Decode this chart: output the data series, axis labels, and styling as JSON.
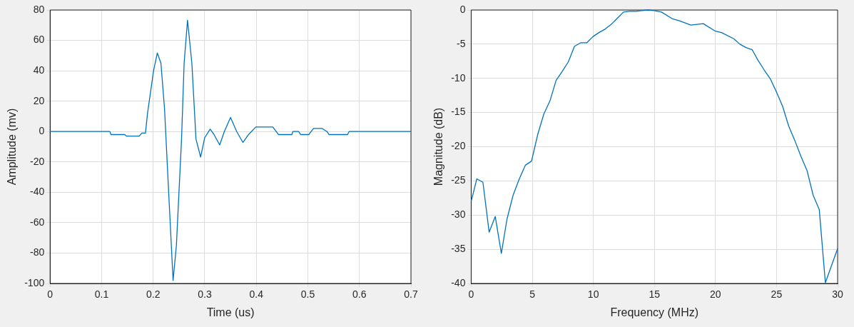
{
  "chart_data": [
    {
      "type": "line",
      "xlabel": "Time (us)",
      "ylabel": "Amplitude (mv)",
      "xlim": [
        0,
        0.7
      ],
      "xticks": [
        0,
        0.1,
        0.2,
        0.3,
        0.4,
        0.5,
        0.6,
        0.7
      ],
      "ylim": [
        -100,
        80
      ],
      "yticks": [
        -100,
        -80,
        -60,
        -40,
        -20,
        0,
        20,
        40,
        60,
        80
      ],
      "grid": true,
      "legend": false,
      "marker": "none",
      "line_style": "solid",
      "series": [
        {
          "color": "#0072bd",
          "x": [
            0,
            0.116,
            0.118,
            0.145,
            0.148,
            0.173,
            0.178,
            0.185,
            0.189,
            0.2007,
            0.208,
            0.215,
            0.222,
            0.23,
            0.2386,
            0.245,
            0.255,
            0.26,
            0.2666,
            0.275,
            0.283,
            0.292,
            0.3,
            0.3105,
            0.318,
            0.329,
            0.338,
            0.35,
            0.362,
            0.374,
            0.385,
            0.399,
            0.432,
            0.443,
            0.469,
            0.471,
            0.482,
            0.486,
            0.502,
            0.511,
            0.528,
            0.537,
            0.541,
            0.577,
            0.58,
            0.7
          ],
          "values": [
            0,
            0,
            -2,
            -2,
            -3,
            -3,
            -1,
            -1,
            12,
            40,
            51.7,
            45,
            15,
            -40,
            -98,
            -75,
            -5,
            45,
            73.3,
            45,
            -5,
            -16.8,
            -4,
            1.6,
            -2,
            -8.8,
            0,
            9.3,
            0,
            -7.2,
            -2,
            3,
            3,
            -2,
            -2,
            0,
            0,
            -2,
            -2,
            2,
            2,
            0,
            -2,
            -2,
            0,
            0
          ]
        }
      ]
    },
    {
      "type": "line",
      "xlabel": "Frequency (MHz)",
      "ylabel": "Magnitude (dB)",
      "xlim": [
        0,
        30
      ],
      "xticks": [
        0,
        5,
        10,
        15,
        20,
        25,
        30
      ],
      "ylim": [
        -40,
        0
      ],
      "yticks": [
        -40,
        -35,
        -30,
        -25,
        -20,
        -15,
        -10,
        -5,
        0
      ],
      "grid": true,
      "legend": false,
      "marker": "none",
      "line_style": "solid",
      "series": [
        {
          "color": "#0072bd",
          "x": [
            0,
            0.46,
            0.96,
            1.47,
            1.97,
            2.47,
            2.93,
            3.43,
            3.94,
            4.44,
            4.94,
            5.45,
            5.95,
            6.45,
            6.95,
            7.45,
            7.95,
            8.46,
            8.96,
            9.46,
            9.96,
            10.46,
            10.96,
            11.47,
            11.97,
            12.47,
            12.98,
            13.48,
            13.98,
            14.48,
            14.98,
            15.58,
            16.49,
            17.09,
            17.99,
            19.0,
            20.0,
            20.5,
            21.5,
            22.0,
            22.5,
            23.0,
            23.5,
            24.0,
            24.5,
            25.0,
            25.5,
            26.0,
            26.5,
            27.0,
            27.5,
            28.0,
            28.5,
            29.0,
            30.0
          ],
          "values": [
            -28.0,
            -24.7,
            -25.2,
            -32.5,
            -30.2,
            -35.6,
            -30.6,
            -27.1,
            -24.7,
            -22.7,
            -22.1,
            -18.2,
            -15.2,
            -13.3,
            -10.3,
            -9.0,
            -7.6,
            -5.3,
            -4.8,
            -4.8,
            -3.9,
            -3.3,
            -2.8,
            -2.1,
            -1.2,
            -0.3,
            -0.2,
            -0.2,
            -0.1,
            0,
            -0.1,
            -0.3,
            -1.3,
            -1.6,
            -2.2,
            -2.0,
            -3.1,
            -3.3,
            -4.2,
            -5.0,
            -5.5,
            -5.8,
            -7.4,
            -8.8,
            -10.1,
            -12.0,
            -14.1,
            -17.0,
            -19.1,
            -21.4,
            -23.5,
            -27.1,
            -29.2,
            -39.9,
            -34.9
          ]
        }
      ]
    }
  ]
}
